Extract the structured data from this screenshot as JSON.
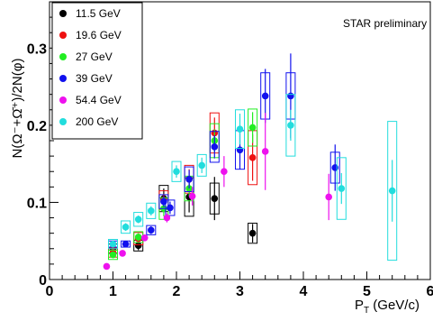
{
  "chart_data": {
    "type": "scatter",
    "title": "",
    "xlabel": "P_T (GeV/c)",
    "ylabel": "N(Ω⁻+Ω̄⁺)/2N(φ)",
    "xlim": [
      0,
      6
    ],
    "ylim": [
      0,
      0.36
    ],
    "x_ticks": [
      "0",
      "1",
      "2",
      "3",
      "4",
      "5",
      "6"
    ],
    "y_ticks": [
      "0.1",
      "0.2",
      "0.3"
    ],
    "y_tick_values": [
      0.1,
      0.2,
      0.3
    ],
    "annotation": "STAR preliminary",
    "legend_position": "top-left",
    "grid": false,
    "series": [
      {
        "name": "11.5 GeV",
        "color": "#000000",
        "points": [
          {
            "x": 1.0,
            "y": 0.04,
            "err": 0.005,
            "sys": 0.006
          },
          {
            "x": 1.4,
            "y": 0.044,
            "err": 0.006,
            "sys": 0.007
          },
          {
            "x": 1.8,
            "y": 0.105,
            "err": 0.013,
            "sys": 0.017
          },
          {
            "x": 2.2,
            "y": 0.107,
            "err": 0.02,
            "sys": 0.025
          },
          {
            "x": 2.6,
            "y": 0.105,
            "err": 0.028,
            "sys": 0.02
          },
          {
            "x": 3.2,
            "y": 0.06,
            "err": 0.012,
            "sys": 0.013
          }
        ]
      },
      {
        "name": "19.6 GeV",
        "color": "#ee1111",
        "points": [
          {
            "x": 1.0,
            "y": 0.035,
            "err": 0.005,
            "sys": 0.006
          },
          {
            "x": 1.4,
            "y": 0.053,
            "err": 0.006,
            "sys": 0.008
          },
          {
            "x": 1.8,
            "y": 0.103,
            "err": 0.008,
            "sys": 0.012
          },
          {
            "x": 2.2,
            "y": 0.13,
            "err": 0.013,
            "sys": 0.018
          },
          {
            "x": 2.6,
            "y": 0.19,
            "err": 0.02,
            "sys": 0.026
          },
          {
            "x": 3.2,
            "y": 0.158,
            "err": 0.03,
            "sys": 0.035
          }
        ]
      },
      {
        "name": "27 GeV",
        "color": "#22ee22",
        "points": [
          {
            "x": 1.0,
            "y": 0.032,
            "err": 0.004,
            "sys": 0.006
          },
          {
            "x": 1.4,
            "y": 0.055,
            "err": 0.005,
            "sys": 0.007
          },
          {
            "x": 1.8,
            "y": 0.092,
            "err": 0.01,
            "sys": 0.014
          },
          {
            "x": 2.2,
            "y": 0.118,
            "err": 0.01,
            "sys": 0.016
          },
          {
            "x": 2.6,
            "y": 0.18,
            "err": 0.015,
            "sys": 0.022
          },
          {
            "x": 3.2,
            "y": 0.197,
            "err": 0.02,
            "sys": 0.024
          }
        ]
      },
      {
        "name": "39 GeV",
        "color": "#1111ee",
        "points": [
          {
            "x": 1.0,
            "y": 0.046,
            "err": 0.004,
            "sys": 0.004
          },
          {
            "x": 1.2,
            "y": 0.046,
            "err": 0.004,
            "sys": 0.004
          },
          {
            "x": 1.6,
            "y": 0.064,
            "err": 0.005,
            "sys": 0.006
          },
          {
            "x": 1.8,
            "y": 0.101,
            "err": 0.007,
            "sys": 0.009
          },
          {
            "x": 1.9,
            "y": 0.093,
            "err": 0.008,
            "sys": 0.01
          },
          {
            "x": 2.2,
            "y": 0.13,
            "err": 0.012,
            "sys": 0.016
          },
          {
            "x": 2.6,
            "y": 0.172,
            "err": 0.015,
            "sys": 0.02
          },
          {
            "x": 3.0,
            "y": 0.168,
            "err": 0.025,
            "sys": 0.025
          },
          {
            "x": 3.4,
            "y": 0.238,
            "err": 0.035,
            "sys": 0.03
          },
          {
            "x": 3.8,
            "y": 0.238,
            "err": 0.055,
            "sys": 0.03
          },
          {
            "x": 4.5,
            "y": 0.145,
            "err": 0.03,
            "sys": 0.02
          }
        ]
      },
      {
        "name": "54.4 GeV",
        "color": "#ee11ee",
        "points": [
          {
            "x": 0.9,
            "y": 0.017,
            "err": 0.003,
            "sys": 0.0
          },
          {
            "x": 1.15,
            "y": 0.034,
            "err": 0.003,
            "sys": 0.0
          },
          {
            "x": 1.5,
            "y": 0.054,
            "err": 0.004,
            "sys": 0.0
          },
          {
            "x": 1.85,
            "y": 0.08,
            "err": 0.006,
            "sys": 0.0
          },
          {
            "x": 2.25,
            "y": 0.108,
            "err": 0.012,
            "sys": 0.0
          },
          {
            "x": 2.75,
            "y": 0.14,
            "err": 0.02,
            "sys": 0.0
          },
          {
            "x": 3.4,
            "y": 0.166,
            "err": 0.05,
            "sys": 0.0
          },
          {
            "x": 4.4,
            "y": 0.107,
            "err": 0.03,
            "sys": 0.0
          }
        ]
      },
      {
        "name": "200 GeV",
        "color": "#22dddd",
        "points": [
          {
            "x": 1.0,
            "y": 0.046,
            "err": 0.004,
            "sys": 0.006
          },
          {
            "x": 1.2,
            "y": 0.068,
            "err": 0.005,
            "sys": 0.008
          },
          {
            "x": 1.4,
            "y": 0.078,
            "err": 0.005,
            "sys": 0.009
          },
          {
            "x": 1.6,
            "y": 0.089,
            "err": 0.006,
            "sys": 0.01
          },
          {
            "x": 2.0,
            "y": 0.14,
            "err": 0.008,
            "sys": 0.013
          },
          {
            "x": 2.4,
            "y": 0.148,
            "err": 0.01,
            "sys": 0.014
          },
          {
            "x": 3.0,
            "y": 0.195,
            "err": 0.02,
            "sys": 0.025
          },
          {
            "x": 3.8,
            "y": 0.2,
            "err": 0.02,
            "sys": 0.04
          },
          {
            "x": 4.6,
            "y": 0.118,
            "err": 0.02,
            "sys": 0.04
          },
          {
            "x": 5.4,
            "y": 0.115,
            "err": 0.04,
            "sys": 0.09
          }
        ]
      }
    ]
  }
}
